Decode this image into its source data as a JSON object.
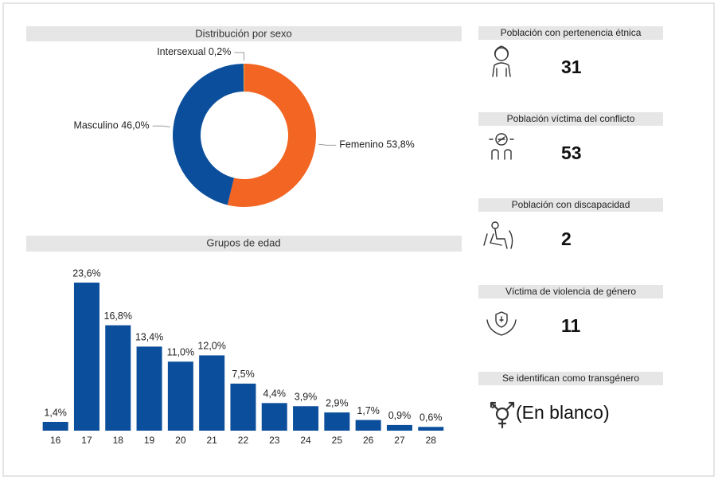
{
  "chart_data": [
    {
      "type": "pie",
      "title": "Distribución por sexo",
      "categories": [
        "Femenino",
        "Masculino",
        "Intersexual"
      ],
      "values": [
        53.8,
        46.0,
        0.2
      ],
      "value_labels": [
        "53,8%",
        "46,0%",
        "0,2%"
      ],
      "colors": [
        "#f26522",
        "#0b4f9c",
        "#e8a33d"
      ],
      "donut": true
    },
    {
      "type": "bar",
      "title": "Grupos de edad",
      "categories": [
        "16",
        "17",
        "18",
        "19",
        "20",
        "21",
        "22",
        "23",
        "24",
        "25",
        "26",
        "27",
        "28"
      ],
      "values": [
        1.4,
        23.6,
        16.8,
        13.4,
        11.0,
        12.0,
        7.5,
        4.4,
        3.9,
        2.9,
        1.7,
        0.9,
        0.6
      ],
      "value_labels": [
        "1,4%",
        "23,6%",
        "16,8%",
        "13,4%",
        "11,0%",
        "12,0%",
        "7,5%",
        "4,4%",
        "3,9%",
        "2,9%",
        "1,7%",
        "0,9%",
        "0,6%"
      ],
      "color": "#0b4f9c"
    }
  ],
  "indicators": [
    {
      "label": "Población con pertenencia étnica",
      "value": "31"
    },
    {
      "label": "Población víctima del conflicto",
      "value": "53"
    },
    {
      "label": "Población con discapacidad",
      "value": "2"
    },
    {
      "label": "Víctima de violencia de género",
      "value": "11"
    },
    {
      "label": "Se identifican como transgénero",
      "value": "(En blanco)"
    }
  ]
}
